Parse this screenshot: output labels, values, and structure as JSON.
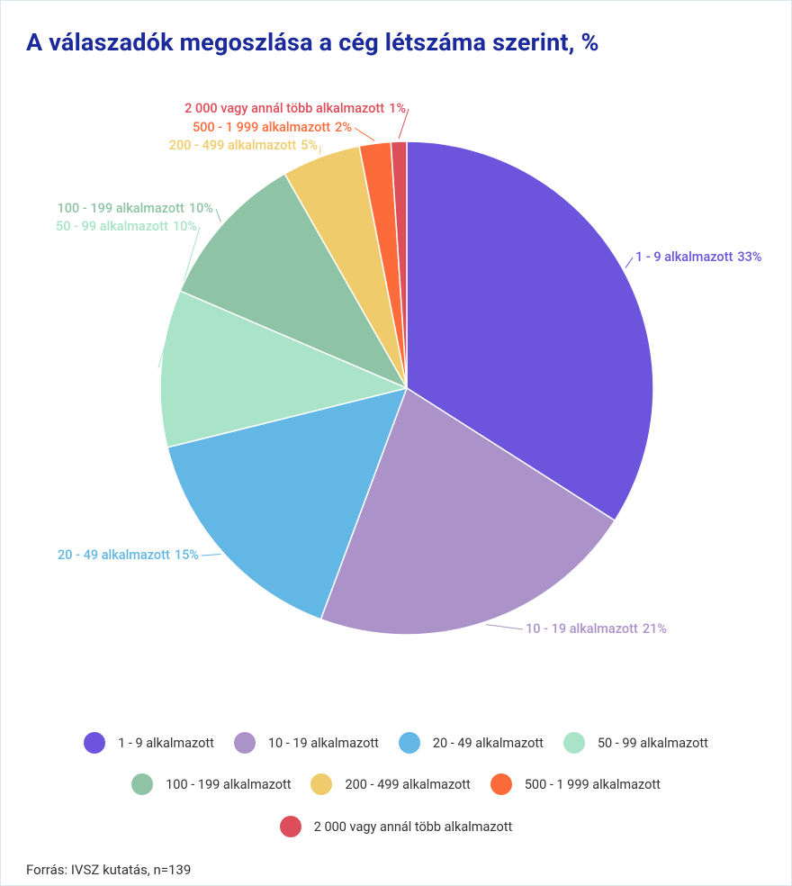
{
  "chart_data": {
    "type": "pie",
    "title": "A válaszadók megoszlása a cég létszáma szerint, %",
    "categories": [
      "1 - 9 alkalmazott",
      "10 - 19 alkalmazott",
      "20 - 49 alkalmazott",
      "50 - 99 alkalmazott",
      "100 - 199 alkalmazott",
      "200 - 499 alkalmazott",
      "500 - 1 999 alkalmazott",
      "2 000 vagy annál több alkalmazott"
    ],
    "values": [
      33,
      21,
      15,
      10,
      10,
      5,
      2,
      1
    ],
    "value_labels": [
      "33%",
      "21%",
      "15%",
      "10%",
      "10%",
      "5%",
      "2%",
      "1%"
    ],
    "colors": [
      "#6c54dc",
      "#ab93c9",
      "#62b7e4",
      "#a9e3c8",
      "#8fc3a5",
      "#f0cb6b",
      "#fd6b3b",
      "#dc4e5a"
    ],
    "source": "Forrás: IVSZ kutatás, n=139"
  }
}
